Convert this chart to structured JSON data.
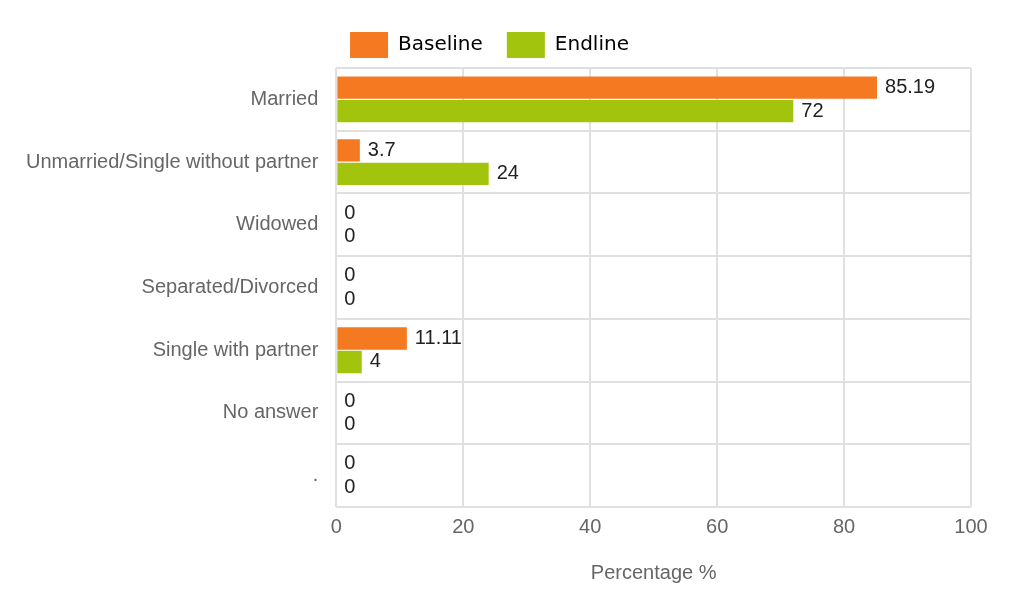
{
  "chart_data": {
    "type": "bar",
    "orientation": "horizontal",
    "xlabel": "Percentage %",
    "categories": [
      "Married",
      "Unmarried/Single without partner",
      "Widowed",
      "Separated/Divorced",
      "Single with partner",
      "No answer",
      "."
    ],
    "series": [
      {
        "name": "Baseline",
        "color": "#f47920",
        "values": [
          85.19,
          3.7,
          0,
          0,
          11.11,
          0,
          0
        ]
      },
      {
        "name": "Endline",
        "color": "#a3c40c",
        "values": [
          72,
          24,
          0,
          0,
          4,
          0,
          0
        ]
      }
    ],
    "xlim": [
      0,
      100
    ],
    "xticks": [
      0,
      20,
      40,
      60,
      80,
      100
    ],
    "grid": true,
    "legend": "top",
    "data_labels": true
  }
}
